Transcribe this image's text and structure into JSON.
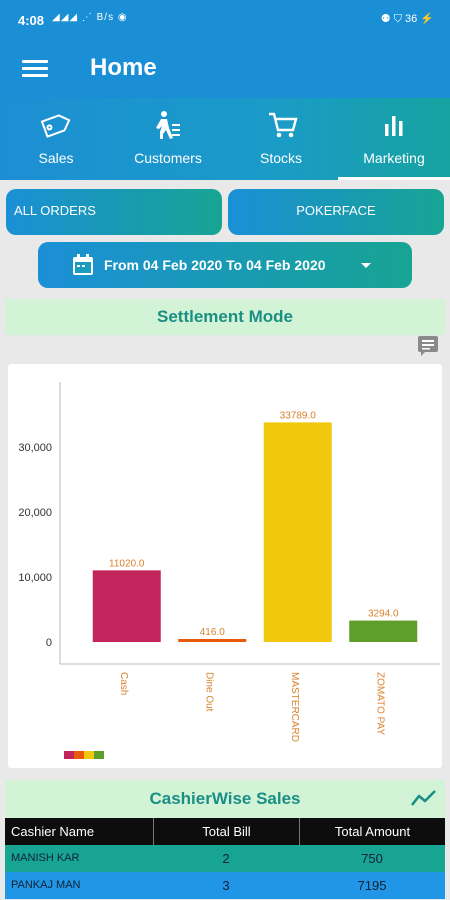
{
  "status": {
    "time": "4:08",
    "signals": "◢◢◢ ⋰ B/s ◉",
    "right": "⚉ ⛉ 36 ⚡"
  },
  "appbar": {
    "title": "Home"
  },
  "tabs": [
    {
      "label": "Sales",
      "icon": "tag-icon"
    },
    {
      "label": "Customers",
      "icon": "walking-person-icon"
    },
    {
      "label": "Stocks",
      "icon": "cart-icon"
    },
    {
      "label": "Marketing",
      "icon": "bar-chart-icon"
    }
  ],
  "buttons": {
    "orders": "ALL ORDERS",
    "outlet": "POKERFACE"
  },
  "date_range": {
    "label": "From 04 Feb 2020 To 04 Feb 2020"
  },
  "sections": {
    "settlement": "Settlement Mode",
    "cashier": "CashierWise Sales"
  },
  "colors": {
    "primary": "#1b8fd6",
    "teal": "#17a493",
    "section_bg": "#d3f3d6",
    "section_text": "#1a8f84"
  },
  "chart_data": {
    "type": "bar",
    "categories": [
      "Cash",
      "Dine Out",
      "MASTERCARD",
      "ZOMATO PAY"
    ],
    "values": [
      11020.0,
      416.0,
      33789.0,
      3294.0
    ],
    "data_labels": [
      "11020.0",
      "416.0",
      "33789.0",
      "3294.0"
    ],
    "yticks": [
      "0",
      "10,000",
      "20,000",
      "30,000"
    ],
    "ylim": [
      0,
      40000
    ],
    "colors": [
      "#c2255c",
      "#e8590c",
      "#f2c80f",
      "#5f9e2a"
    ],
    "grid": false,
    "legend": "bottom-left"
  },
  "table": {
    "headers": [
      "Cashier Name",
      "Total Bill",
      "Total Amount"
    ],
    "rows": [
      [
        "MANISH KAR",
        "2",
        "750"
      ],
      [
        "PANKAJ MAN",
        "3",
        "7195"
      ]
    ]
  }
}
